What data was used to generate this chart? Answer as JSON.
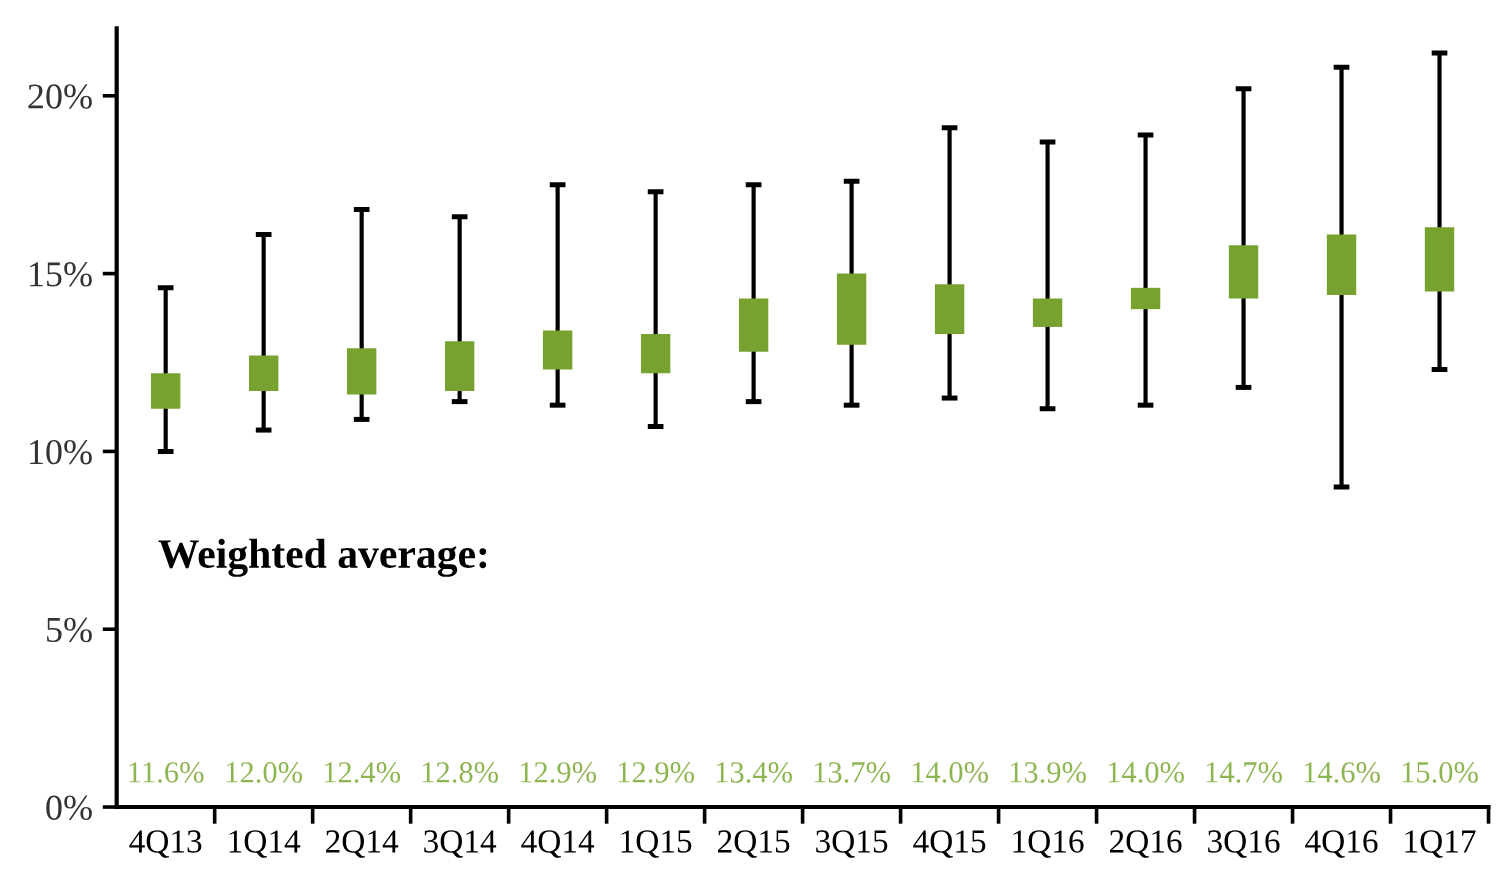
{
  "chart_data": {
    "type": "box",
    "categories": [
      "4Q13",
      "1Q14",
      "2Q14",
      "3Q14",
      "4Q14",
      "1Q15",
      "2Q15",
      "3Q15",
      "4Q15",
      "1Q16",
      "2Q16",
      "3Q16",
      "4Q16",
      "1Q17"
    ],
    "boxes": [
      {
        "low": 10.0,
        "q1": 11.2,
        "q3": 12.2,
        "high": 14.6
      },
      {
        "low": 10.6,
        "q1": 11.7,
        "q3": 12.7,
        "high": 16.1
      },
      {
        "low": 10.9,
        "q1": 11.6,
        "q3": 12.9,
        "high": 16.8
      },
      {
        "low": 11.4,
        "q1": 11.7,
        "q3": 13.1,
        "high": 16.6
      },
      {
        "low": 11.3,
        "q1": 12.3,
        "q3": 13.4,
        "high": 17.5
      },
      {
        "low": 10.7,
        "q1": 12.2,
        "q3": 13.3,
        "high": 17.3
      },
      {
        "low": 11.4,
        "q1": 12.8,
        "q3": 14.3,
        "high": 17.5
      },
      {
        "low": 11.3,
        "q1": 13.0,
        "q3": 15.0,
        "high": 17.6
      },
      {
        "low": 11.5,
        "q1": 13.3,
        "q3": 14.7,
        "high": 19.1
      },
      {
        "low": 11.2,
        "q1": 13.5,
        "q3": 14.3,
        "high": 18.7
      },
      {
        "low": 11.3,
        "q1": 14.0,
        "q3": 14.6,
        "high": 18.9
      },
      {
        "low": 11.8,
        "q1": 14.3,
        "q3": 15.8,
        "high": 20.2
      },
      {
        "low": 9.0,
        "q1": 14.4,
        "q3": 16.1,
        "high": 20.8
      },
      {
        "low": 12.3,
        "q1": 14.5,
        "q3": 16.3,
        "high": 21.2
      }
    ],
    "color": "#78a22f",
    "ylim": [
      0,
      21.9
    ],
    "yticks": [
      {
        "value": 0,
        "label": "0%"
      },
      {
        "value": 5,
        "label": "5%"
      },
      {
        "value": 10,
        "label": "10%"
      },
      {
        "value": 15,
        "label": "15%"
      },
      {
        "value": 20,
        "label": "20%"
      }
    ],
    "annotations": [
      "Weighted average:",
      "11.6%",
      "12.0%",
      "12.4%",
      "12.8%",
      "12.9%",
      "12.9%",
      "13.4%",
      "13.7%",
      "14.0%",
      "13.9%",
      "14.0%",
      "14.7%",
      "14.6%",
      "15.0%"
    ],
    "grid": false,
    "legend": false
  }
}
